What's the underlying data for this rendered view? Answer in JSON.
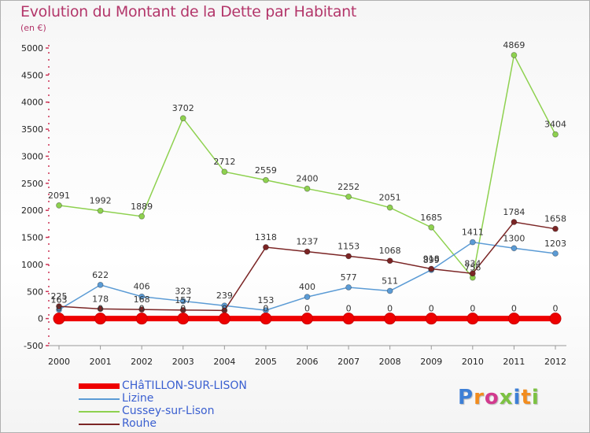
{
  "title": "Evolution du Montant de la Dette par Habitant",
  "subtitle": "(en €)",
  "logo_text": "Proxiti",
  "chart_data": {
    "type": "line",
    "x": [
      2000,
      2001,
      2002,
      2003,
      2004,
      2005,
      2006,
      2007,
      2008,
      2009,
      2010,
      2011,
      2012
    ],
    "y_ticks": [
      5000,
      4500,
      4000,
      3500,
      3000,
      2500,
      2000,
      1500,
      1000,
      500,
      0,
      -500
    ],
    "ylim": [
      -500,
      5000
    ],
    "grid": false,
    "legend_position": "bottom",
    "series": [
      {
        "name": "CHâTILLON-SUR-LISON",
        "color": "#ee0000",
        "values": [
          0,
          0,
          0,
          0,
          0,
          0,
          0,
          0,
          0,
          0,
          0,
          0,
          0
        ],
        "labels": [
          "0",
          "0",
          "0",
          "0",
          "0",
          "0",
          "0",
          "0",
          "0",
          "0",
          "0",
          "0",
          "0"
        ]
      },
      {
        "name": "Lizine",
        "color": "#5b9bd5",
        "values": [
          163,
          622,
          406,
          323,
          239,
          153,
          400,
          577,
          511,
          899,
          1411,
          1300,
          1203
        ],
        "labels": [
          "163",
          "622",
          "406",
          "323",
          "239",
          "153",
          "400",
          "577",
          "511",
          "899",
          "1411",
          "1300",
          "1203"
        ]
      },
      {
        "name": "Cussey-sur-Lison",
        "color": "#8ed14f",
        "values": [
          2091,
          1992,
          1889,
          3702,
          2712,
          2559,
          2400,
          2252,
          2051,
          1685,
          756,
          4869,
          3404
        ],
        "labels": [
          "2091",
          "1992",
          "1889",
          "3702",
          "2712",
          "2559",
          "2400",
          "2252",
          "2051",
          "1685",
          "756",
          "4869",
          "3404"
        ]
      },
      {
        "name": "Rouhe",
        "color": "#7b2525",
        "values": [
          225,
          178,
          168,
          157,
          150,
          1318,
          1237,
          1153,
          1068,
          918,
          834,
          1784,
          1658
        ],
        "labels": [
          "225",
          "178",
          "168",
          "157",
          "",
          "1318",
          "1237",
          "1153",
          "1068",
          "918",
          "834",
          "1784",
          "1658"
        ]
      }
    ]
  }
}
